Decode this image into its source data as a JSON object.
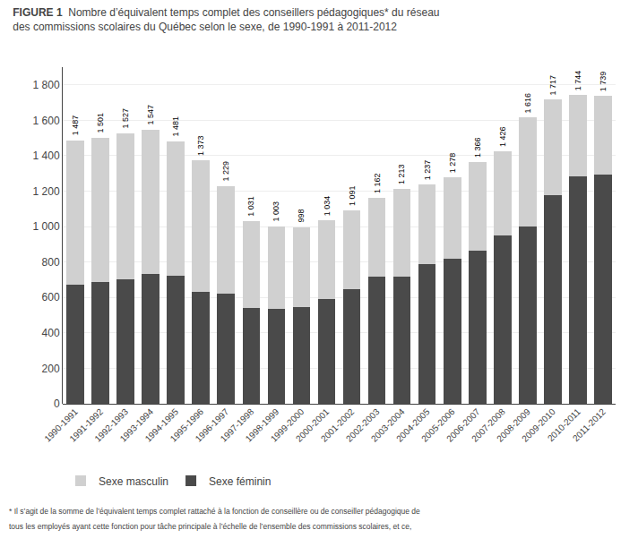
{
  "chart_data": {
    "type": "bar",
    "stacked": true,
    "title": "FIGURE 1",
    "subtitle": "Nombre d’équivalent temps complet des conseillers pédagogiques* du réseau\ndes commissions scolaires du Québec selon le sexe, de 1990-1991 à 2011-2012",
    "categories": [
      "1990-1991",
      "1991-1992",
      "1992-1993",
      "1993-1994",
      "1994-1995",
      "1995-1996",
      "1996-1997",
      "1997-1998",
      "1998-1999",
      "1999-2000",
      "2000-2001",
      "2001-2002",
      "2002-2003",
      "2003-2004",
      "2004-2005",
      "2005-2006",
      "2006-2007",
      "2007-2008",
      "2008-2009",
      "2009-2010",
      "2010-2011",
      "2011-2012"
    ],
    "series": [
      {
        "name": "Sexe féminin",
        "color": "#4a4a4a",
        "values": [
          670,
          685,
          700,
          735,
          725,
          630,
          620,
          540,
          535,
          545,
          590,
          645,
          720,
          720,
          790,
          820,
          865,
          950,
          1000,
          1175,
          1285,
          1295
        ]
      },
      {
        "name": "Sexe masculin",
        "color": "#d0d0d0",
        "values": [
          817,
          816,
          827,
          812,
          756,
          743,
          609,
          491,
          468,
          453,
          444,
          446,
          442,
          493,
          447,
          458,
          501,
          476,
          616,
          542,
          459,
          444
        ]
      }
    ],
    "totals": [
      1487,
      1501,
      1527,
      1547,
      1481,
      1373,
      1229,
      1031,
      1003,
      998,
      1034,
      1091,
      1162,
      1213,
      1237,
      1278,
      1366,
      1426,
      1616,
      1717,
      1744,
      1739
    ],
    "total_labels": [
      "1 487",
      "1 501",
      "1 527",
      "1 547",
      "1 481",
      "1 373",
      "1 229",
      "1 031",
      "1 003",
      "998",
      "1 034",
      "1 091",
      "1 162",
      "1 213",
      "1 237",
      "1 278",
      "1 366",
      "1 426",
      "1 616",
      "1 717",
      "1 744",
      "1 739"
    ],
    "ylim": [
      0,
      1900
    ],
    "yticks": [
      0,
      200,
      400,
      600,
      800,
      {
        "value": 1000,
        "label": "1 000"
      },
      {
        "value": 1200,
        "label": "1 200"
      },
      {
        "value": 1400,
        "label": "1 400"
      },
      {
        "value": 1600,
        "label": "1 600"
      },
      {
        "value": 1800,
        "label": "1 800"
      }
    ],
    "grid": true,
    "legend": "bottom",
    "annotations": [
      "* Il s’agit de la somme de l’équivalent temps complet rattaché à la fonction de conseillère ou de conseiller pédagogique de",
      "tous les employés ayant cette fonction pour tâche principale à l’échelle de l’ensemble des commissions scolaires, et ce,"
    ]
  }
}
